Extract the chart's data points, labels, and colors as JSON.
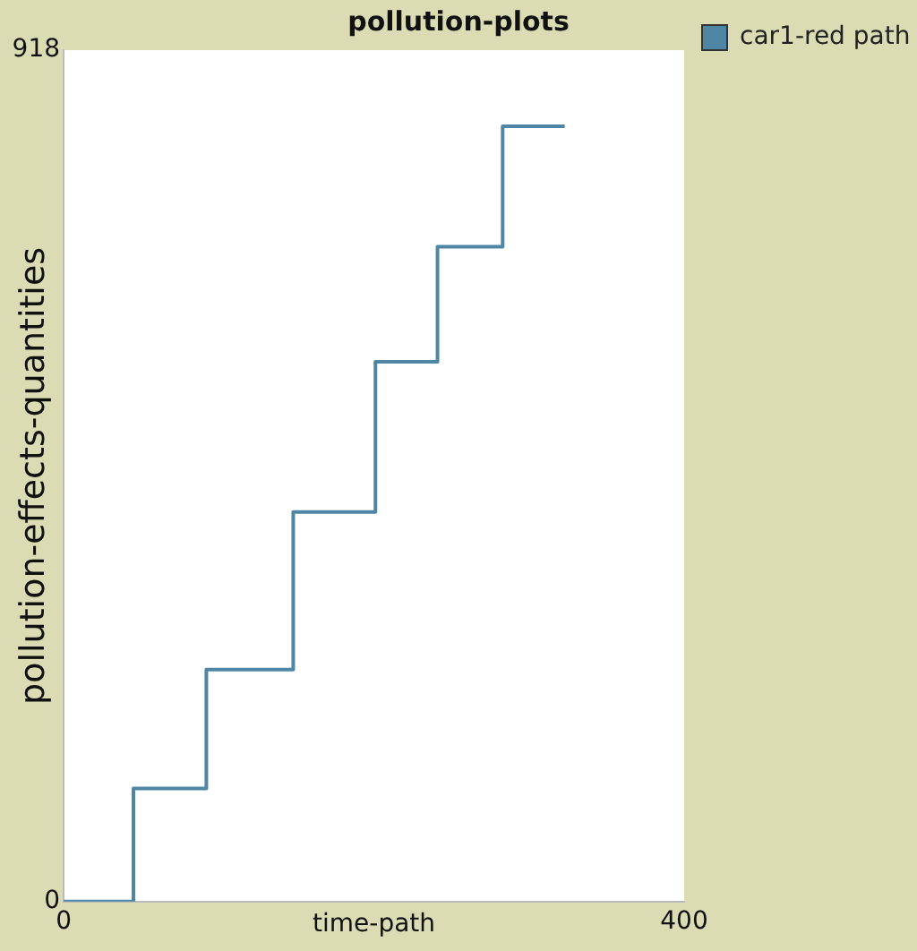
{
  "chart_data": {
    "type": "step",
    "title": "pollution-plots",
    "xlabel": "time-path",
    "ylabel": "pollution-effects-quantities",
    "x": [
      0,
      45,
      92,
      148,
      201,
      241,
      283,
      323
    ],
    "series": [
      {
        "name": "car1-red path",
        "color": "#4f86a3",
        "values": [
          0,
          122,
          250,
          420,
          582,
          706,
          836,
          836
        ]
      }
    ],
    "xlim": [
      0,
      400
    ],
    "xticks": [
      0,
      400
    ],
    "ylim": [
      0,
      918
    ],
    "yticks": [
      0,
      918
    ],
    "grid": false,
    "legend": "top right",
    "marker": "none",
    "line_style": "solid"
  }
}
